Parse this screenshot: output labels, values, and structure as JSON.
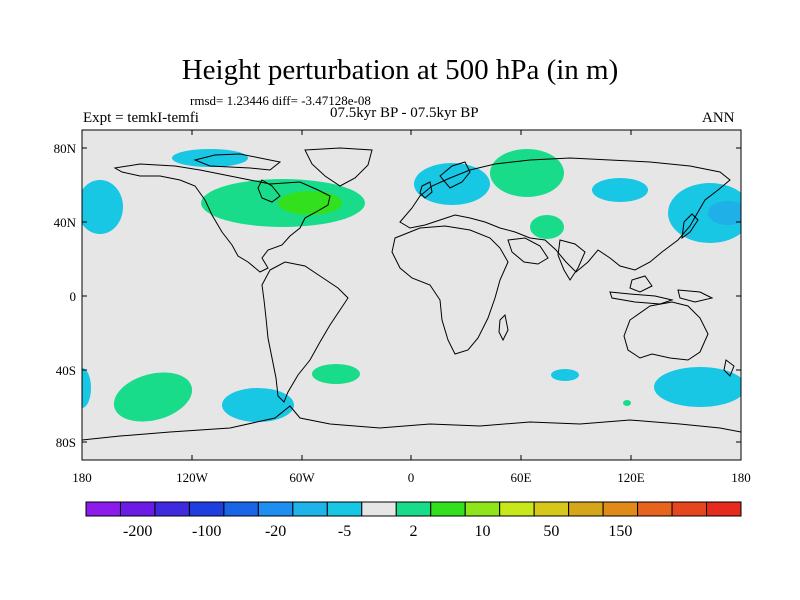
{
  "title": "Height perturbation at 500 hPa (in m)",
  "stats_text": "rmsd= 1.23446 diff= -3.47128e-08",
  "experiment_text": "Expt = temkI-temfi",
  "period_text": "07.5kyr BP - 07.5kyr BP",
  "season_text": "ANN",
  "map": {
    "background_color": "#e6e6e6",
    "coastline_color": "#000000",
    "lon_ticks": [
      "180",
      "120W",
      "60W",
      "0",
      "60E",
      "120E",
      "180"
    ],
    "lat_ticks": [
      "80N",
      "40N",
      "0",
      "40S",
      "80S"
    ]
  },
  "colorbar": {
    "colors": [
      "#8c1cec",
      "#6a1ce6",
      "#3f2ae0",
      "#1e3ee0",
      "#1a64e8",
      "#1e8ef0",
      "#1eb4ea",
      "#17c7e3",
      "#e6e6e6",
      "#19dc8a",
      "#33e01e",
      "#8ee61a",
      "#c8e81a",
      "#d6c81a",
      "#d6a61a",
      "#e08a1a",
      "#e6641e",
      "#e6461e",
      "#e62a1e"
    ],
    "labels": [
      "-200",
      "-100",
      "-20",
      "-5",
      "2",
      "10",
      "50",
      "150"
    ]
  },
  "chart_data": {
    "type": "heatmap",
    "title": "Height perturbation at 500 hPa (in m)",
    "units": "m",
    "regions": [
      {
        "region": "Northern Canada / Arctic",
        "category": "-5 to -20 (blue)"
      },
      {
        "region": "Eastern North America / NW Atlantic",
        "category": "2 to 10 (green)",
        "core": "10 to 50 (darker green)"
      },
      {
        "region": "North Pacific (west of North America)",
        "category": "-5 to -20 (blue)"
      },
      {
        "region": "NW Europe / North Sea",
        "category": "-5 to -20 (blue)"
      },
      {
        "region": "Western Siberia / Urals",
        "category": "2 to 10 (green)"
      },
      {
        "region": "Central Asia",
        "category": "-5 to -20 (blue)"
      },
      {
        "region": "Middle East",
        "category": "2 to 10 (green)"
      },
      {
        "region": "NW Pacific / Japan",
        "category": "-5 to -20 (blue)"
      },
      {
        "region": "South Pacific ~60S 150W",
        "category": "2 to 10 (green)"
      },
      {
        "region": "SE Pacific ~60S 90W",
        "category": "-5 to -20 (blue)"
      },
      {
        "region": "South Atlantic ~45S 40W",
        "category": "2 to 10 (green)"
      },
      {
        "region": "Southern Indian Ocean ~50S 90E",
        "category": "-5 to -20 (blue)"
      },
      {
        "region": "SW Pacific ~55S 170E",
        "category": "-5 to -20 (blue)"
      }
    ]
  }
}
